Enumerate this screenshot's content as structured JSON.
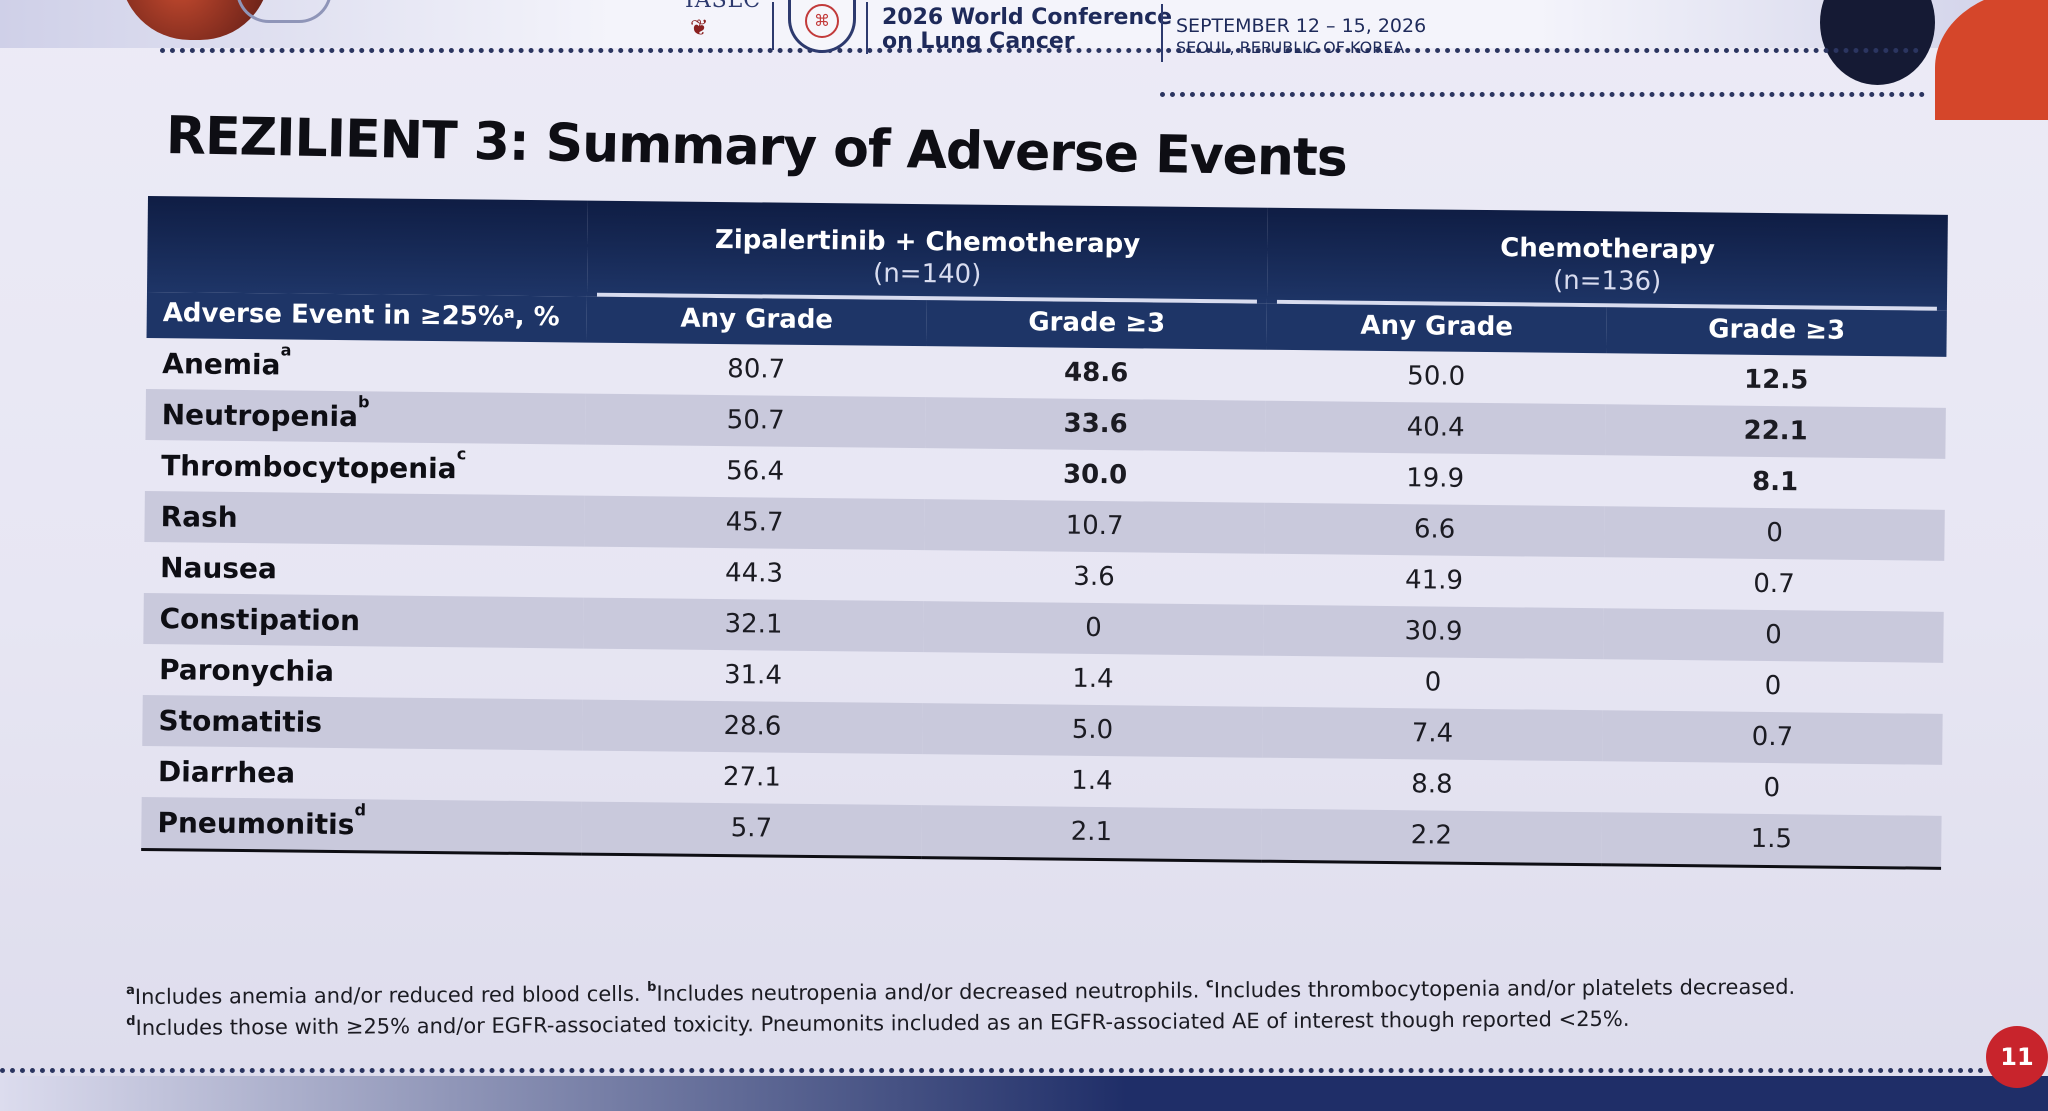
{
  "header": {
    "org": "IASLC",
    "conference_line1": "2026 World Conference",
    "conference_line2": "on Lung Cancer",
    "date_line1": "SEPTEMBER 12 – 15, 2026",
    "date_line2": "SEOUL, REPUBLIC OF KOREA",
    "seal_glyph": "2026"
  },
  "title": "REZILIENT 3: Summary of Adverse Events",
  "table": {
    "first_col_header": "Adverse Event in ≥25%",
    "first_col_header_sup": "a",
    "first_col_header_suffix": ", %",
    "groups": [
      {
        "name": "Zipalertinib + Chemotherapy",
        "n": "(n=140)"
      },
      {
        "name": "Chemotherapy",
        "n": "(n=136)"
      }
    ],
    "subheaders": [
      "Any Grade",
      "Grade ≥3",
      "Any Grade",
      "Grade ≥3"
    ],
    "rows": [
      {
        "event": "Anemia",
        "sup": "a",
        "values": [
          "80.7",
          "48.6",
          "50.0",
          "12.5"
        ]
      },
      {
        "event": "Neutropenia",
        "sup": "b",
        "values": [
          "50.7",
          "33.6",
          "40.4",
          "22.1"
        ]
      },
      {
        "event": "Thrombocytopenia",
        "sup": "c",
        "values": [
          "56.4",
          "30.0",
          "19.9",
          "8.1"
        ]
      },
      {
        "event": "Rash",
        "sup": "",
        "values": [
          "45.7",
          "10.7",
          "6.6",
          "0"
        ]
      },
      {
        "event": "Nausea",
        "sup": "",
        "values": [
          "44.3",
          "3.6",
          "41.9",
          "0.7"
        ]
      },
      {
        "event": "Constipation",
        "sup": "",
        "values": [
          "32.1",
          "0",
          "30.9",
          "0"
        ]
      },
      {
        "event": "Paronychia",
        "sup": "",
        "values": [
          "31.4",
          "1.4",
          "0",
          "0"
        ]
      },
      {
        "event": "Stomatitis",
        "sup": "",
        "values": [
          "28.6",
          "5.0",
          "7.4",
          "0.7"
        ]
      },
      {
        "event": "Diarrhea",
        "sup": "",
        "values": [
          "27.1",
          "1.4",
          "8.8",
          "0"
        ]
      },
      {
        "event": "Pneumonitis",
        "sup": "d",
        "values": [
          "5.7",
          "2.1",
          "2.2",
          "1.5"
        ]
      }
    ]
  },
  "footnotes": {
    "line1_parts": [
      {
        "sup": "a",
        "text": "Includes anemia and/or reduced red blood cells. "
      },
      {
        "sup": "b",
        "text": "Includes neutropenia and/or decreased neutrophils. "
      },
      {
        "sup": "c",
        "text": "Includes thrombocytopenia and/or platelets decreased."
      }
    ],
    "line2_parts": [
      {
        "sup": "d",
        "text": "Includes those with ≥25% and/or EGFR-associated toxicity. Pneumonits included as an EGFR-associated AE of interest though reported <25%."
      }
    ]
  },
  "page_number": "11",
  "colors": {
    "header_bg": "#1e3567",
    "stripe": "#c9c9dc",
    "badge": "#c8242c"
  }
}
